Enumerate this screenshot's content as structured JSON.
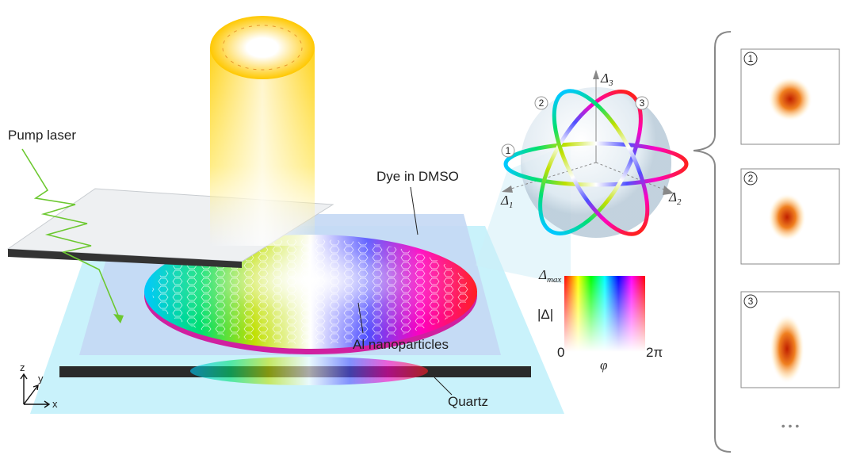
{
  "labels": {
    "pump_laser": "Pump laser",
    "dye": "Dye in DMSO",
    "nanoparticles": "Al nanoparticles",
    "quartz": "Quartz"
  },
  "axes": {
    "z": "z",
    "y": "y",
    "x": "x"
  },
  "sphere": {
    "axes": [
      {
        "symbol": "Δ",
        "subscript": "1"
      },
      {
        "symbol": "Δ",
        "subscript": "2"
      },
      {
        "symbol": "Δ",
        "subscript": "3"
      }
    ],
    "paths": [
      "1",
      "2",
      "3"
    ]
  },
  "colormap": {
    "max_symbol": "Δ",
    "max_subscript": "max",
    "y_label": "|Δ|",
    "x_start": "0",
    "x_label": "φ",
    "x_end": "2π"
  },
  "panels": [
    {
      "label": "1"
    },
    {
      "label": "2"
    },
    {
      "label": "3"
    }
  ],
  "ellipsis": "• • •"
}
